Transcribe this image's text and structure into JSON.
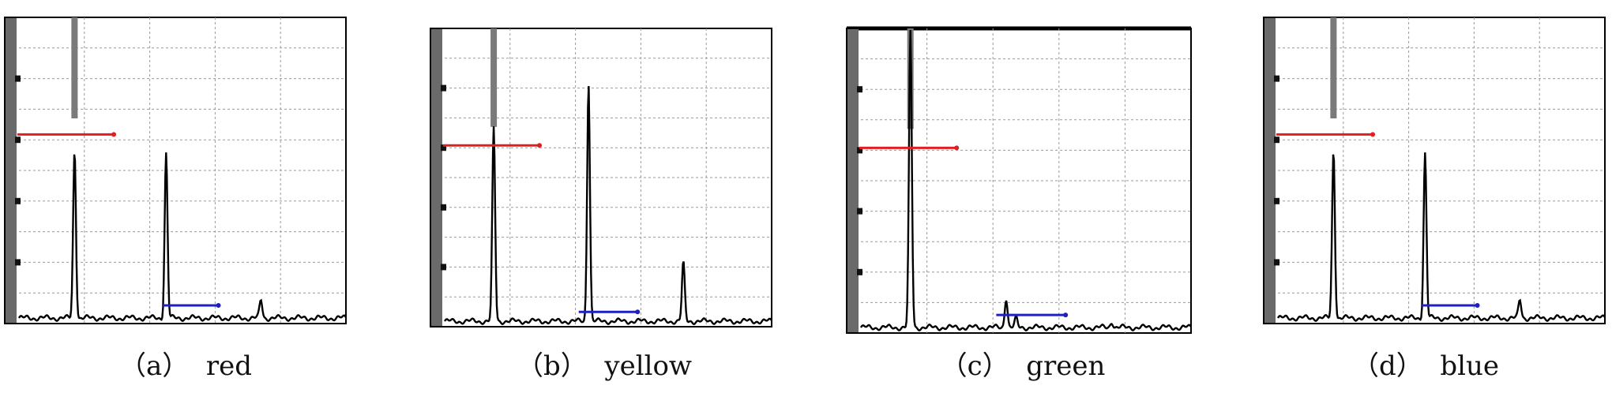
{
  "chart_data": [
    {
      "type": "line",
      "caption": "（a）  red",
      "peaks": [
        {
          "x": 0.17,
          "y": 0.56
        },
        {
          "x": 0.45,
          "y": 0.55
        },
        {
          "x": 0.74,
          "y": 0.06
        }
      ],
      "red_marker": {
        "x0": 0.0,
        "x1": 0.29,
        "y": 0.62
      },
      "blue_marker": {
        "x0": 0.44,
        "x1": 0.61,
        "y": 0.05
      },
      "colors": {
        "trace": "#000000",
        "red": "#e02020",
        "blue": "#2020c0",
        "grid": "#9a9a9a"
      }
    },
    {
      "type": "line",
      "caption": "（b）  yellow",
      "peaks": [
        {
          "x": 0.15,
          "y": 0.66
        },
        {
          "x": 0.44,
          "y": 0.82
        },
        {
          "x": 0.73,
          "y": 0.2
        }
      ],
      "red_marker": {
        "x0": 0.0,
        "x1": 0.29,
        "y": 0.61
      },
      "blue_marker": {
        "x0": 0.41,
        "x1": 0.59,
        "y": 0.04
      },
      "colors": {
        "trace": "#000000",
        "red": "#e02020",
        "blue": "#2020c0",
        "grid": "#9a9a9a"
      }
    },
    {
      "type": "line",
      "caption": "（c）  green",
      "peaks": [
        {
          "x": 0.15,
          "y": 0.99
        },
        {
          "x": 0.44,
          "y": 0.1
        },
        {
          "x": 0.47,
          "y": 0.03
        },
        {
          "x": 0.76,
          "y": 0.02
        }
      ],
      "red_marker": {
        "x0": 0.0,
        "x1": 0.29,
        "y": 0.61
      },
      "blue_marker": {
        "x0": 0.41,
        "x1": 0.62,
        "y": 0.05
      },
      "colors": {
        "trace": "#000000",
        "red": "#e02020",
        "blue": "#2020c0",
        "grid": "#9a9a9a"
      }
    },
    {
      "type": "line",
      "caption": "（d）  blue",
      "peaks": [
        {
          "x": 0.17,
          "y": 0.56
        },
        {
          "x": 0.45,
          "y": 0.55
        },
        {
          "x": 0.74,
          "y": 0.06
        }
      ],
      "red_marker": {
        "x0": 0.0,
        "x1": 0.29,
        "y": 0.62
      },
      "blue_marker": {
        "x0": 0.44,
        "x1": 0.61,
        "y": 0.05
      },
      "colors": {
        "trace": "#000000",
        "red": "#e02020",
        "blue": "#2020c0",
        "grid": "#9a9a9a"
      }
    }
  ]
}
